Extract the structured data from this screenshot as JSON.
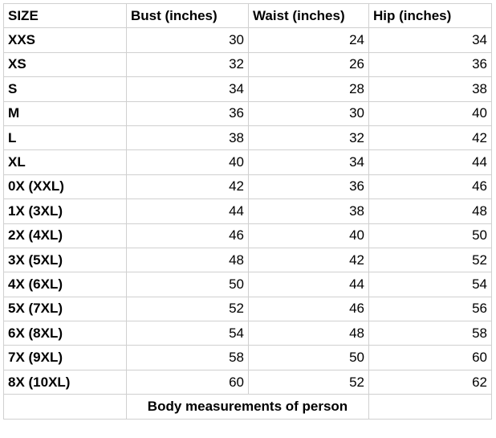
{
  "table": {
    "header": [
      "SIZE",
      "Bust (inches)",
      "Waist (inches)",
      "Hip (inches)"
    ],
    "rows": [
      [
        "XXS",
        30,
        24,
        34
      ],
      [
        "XS",
        32,
        26,
        36
      ],
      [
        "S",
        34,
        28,
        38
      ],
      [
        "M",
        36,
        30,
        40
      ],
      [
        "L",
        38,
        32,
        42
      ],
      [
        "XL",
        40,
        34,
        44
      ],
      [
        "0X (XXL)",
        42,
        36,
        46
      ],
      [
        "1X (3XL)",
        44,
        38,
        48
      ],
      [
        "2X (4XL)",
        46,
        40,
        50
      ],
      [
        "3X (5XL)",
        48,
        42,
        52
      ],
      [
        "4X (6XL)",
        50,
        44,
        54
      ],
      [
        "5X (7XL)",
        52,
        46,
        56
      ],
      [
        "6X (8XL)",
        54,
        48,
        58
      ],
      [
        "7X (9XL)",
        58,
        50,
        60
      ],
      [
        "8X (10XL)",
        60,
        52,
        62
      ]
    ],
    "footer": "Body measurements of person"
  }
}
